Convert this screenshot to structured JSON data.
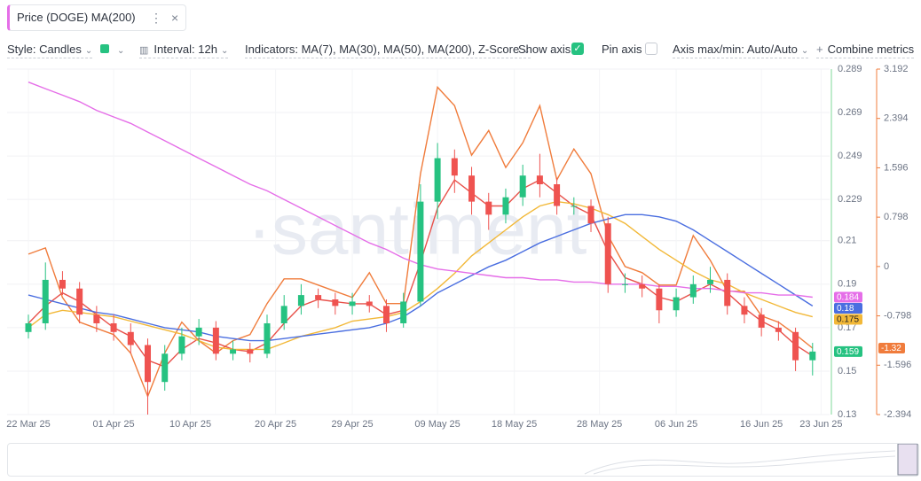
{
  "tab": {
    "title": "Price (DOGE) MA(200)"
  },
  "toolbar": {
    "style": "Style: Candles",
    "interval": "Interval: 12h",
    "indicators": "Indicators: MA(7), MA(30), MA(50), MA(200), Z-Score",
    "show_axis": "Show axis",
    "pin_axis": "Pin axis",
    "axis_maxmin": "Axis max/min: Auto/Auto",
    "combine": "Combine metrics"
  },
  "watermark": "·santiment",
  "chart_data": {
    "type": "candlestick",
    "x": [
      0,
      2,
      4,
      6,
      8,
      10,
      12,
      14,
      16,
      18,
      20,
      22,
      24,
      26,
      28,
      30,
      32,
      34,
      36,
      38,
      40,
      42,
      44,
      46,
      48,
      50,
      52,
      54,
      56,
      58,
      60,
      62,
      64,
      66,
      68,
      70,
      72,
      74,
      76,
      78,
      80,
      82,
      84,
      86,
      88,
      90,
      92
    ],
    "xlim": [
      -2.5,
      94
    ],
    "xticks": [
      {
        "value": 0,
        "label": "22 Mar 25"
      },
      {
        "value": 10,
        "label": "01 Apr 25"
      },
      {
        "value": 19,
        "label": "10 Apr 25"
      },
      {
        "value": 29,
        "label": "20 Apr 25"
      },
      {
        "value": 38,
        "label": "29 Apr 25"
      },
      {
        "value": 48,
        "label": "09 May 25"
      },
      {
        "value": 57,
        "label": "18 May 25"
      },
      {
        "value": 67,
        "label": "28 May 25"
      },
      {
        "value": 76,
        "label": "06 Jun 25"
      },
      {
        "value": 86,
        "label": "16 Jun 25"
      },
      {
        "value": 93,
        "label": "23 Jun 25"
      }
    ],
    "ylim": [
      0.13,
      0.289
    ],
    "yticks": [
      0.13,
      0.15,
      0.17,
      0.19,
      0.21,
      0.229,
      0.249,
      0.269,
      0.289
    ],
    "y2lim": [
      -2.394,
      3.192
    ],
    "y2ticks": [
      -2.394,
      -1.596,
      -0.798,
      0,
      0.798,
      1.596,
      2.394,
      3.192
    ],
    "grid": true,
    "candles": {
      "up_color": "#26c281",
      "down_color": "#ef5350",
      "axis_color": "#7fd99a",
      "last_label": "0.159",
      "open": [
        0.168,
        0.172,
        0.192,
        0.188,
        0.176,
        0.172,
        0.168,
        0.162,
        0.145,
        0.158,
        0.166,
        0.17,
        0.158,
        0.16,
        0.158,
        0.172,
        0.18,
        0.185,
        0.183,
        0.18,
        0.182,
        0.18,
        0.172,
        0.182,
        0.228,
        0.248,
        0.24,
        0.228,
        0.222,
        0.23,
        0.24,
        0.236,
        0.226,
        0.226,
        0.218,
        0.19,
        0.19,
        0.188,
        0.178,
        0.184,
        0.19,
        0.192,
        0.18,
        0.176,
        0.17,
        0.168,
        0.155
      ],
      "high": [
        0.176,
        0.2,
        0.196,
        0.191,
        0.18,
        0.176,
        0.172,
        0.165,
        0.162,
        0.17,
        0.174,
        0.173,
        0.164,
        0.163,
        0.176,
        0.185,
        0.19,
        0.188,
        0.186,
        0.186,
        0.185,
        0.183,
        0.186,
        0.236,
        0.255,
        0.252,
        0.244,
        0.232,
        0.234,
        0.245,
        0.25,
        0.239,
        0.23,
        0.229,
        0.221,
        0.195,
        0.194,
        0.19,
        0.188,
        0.194,
        0.198,
        0.195,
        0.184,
        0.179,
        0.173,
        0.17,
        0.163
      ],
      "low": [
        0.165,
        0.169,
        0.185,
        0.172,
        0.168,
        0.164,
        0.158,
        0.13,
        0.141,
        0.155,
        0.162,
        0.155,
        0.155,
        0.154,
        0.156,
        0.169,
        0.176,
        0.179,
        0.176,
        0.176,
        0.177,
        0.168,
        0.17,
        0.18,
        0.22,
        0.232,
        0.222,
        0.215,
        0.218,
        0.226,
        0.23,
        0.222,
        0.222,
        0.214,
        0.186,
        0.186,
        0.184,
        0.172,
        0.175,
        0.181,
        0.186,
        0.176,
        0.172,
        0.166,
        0.164,
        0.15,
        0.148
      ],
      "close": [
        0.172,
        0.192,
        0.188,
        0.176,
        0.172,
        0.168,
        0.162,
        0.145,
        0.158,
        0.166,
        0.17,
        0.158,
        0.16,
        0.158,
        0.172,
        0.18,
        0.185,
        0.183,
        0.18,
        0.182,
        0.18,
        0.172,
        0.182,
        0.228,
        0.248,
        0.24,
        0.228,
        0.222,
        0.23,
        0.24,
        0.236,
        0.226,
        0.226,
        0.218,
        0.19,
        0.19,
        0.188,
        0.178,
        0.184,
        0.19,
        0.192,
        0.18,
        0.176,
        0.17,
        0.168,
        0.155,
        0.159
      ]
    },
    "series": [
      {
        "name": "MA(200)",
        "color": "#e56ee8",
        "last_label": "0.184",
        "values": [
          0.283,
          0.28,
          0.277,
          0.274,
          0.27,
          0.267,
          0.264,
          0.26,
          0.256,
          0.252,
          0.248,
          0.244,
          0.24,
          0.236,
          0.233,
          0.229,
          0.225,
          0.221,
          0.217,
          0.213,
          0.209,
          0.206,
          0.202,
          0.199,
          0.197,
          0.196,
          0.195,
          0.194,
          0.193,
          0.193,
          0.192,
          0.192,
          0.191,
          0.191,
          0.19,
          0.19,
          0.19,
          0.189,
          0.189,
          0.188,
          0.188,
          0.187,
          0.186,
          0.186,
          0.185,
          0.185,
          0.184
        ]
      },
      {
        "name": "MA(50)",
        "color": "#4a6ee0",
        "last_label": "0.18",
        "values": [
          0.185,
          0.183,
          0.181,
          0.179,
          0.177,
          0.176,
          0.174,
          0.172,
          0.17,
          0.169,
          0.168,
          0.166,
          0.165,
          0.164,
          0.164,
          0.165,
          0.166,
          0.167,
          0.168,
          0.169,
          0.17,
          0.172,
          0.175,
          0.18,
          0.186,
          0.19,
          0.194,
          0.198,
          0.201,
          0.205,
          0.209,
          0.212,
          0.215,
          0.218,
          0.22,
          0.222,
          0.222,
          0.221,
          0.219,
          0.215,
          0.21,
          0.205,
          0.2,
          0.195,
          0.19,
          0.185,
          0.18
        ]
      },
      {
        "name": "MA(30)",
        "color": "#f2b838",
        "last_label": "0.175",
        "values": [
          0.17,
          0.176,
          0.178,
          0.177,
          0.176,
          0.175,
          0.173,
          0.171,
          0.169,
          0.167,
          0.164,
          0.161,
          0.16,
          0.16,
          0.16,
          0.163,
          0.166,
          0.168,
          0.17,
          0.173,
          0.174,
          0.175,
          0.177,
          0.182,
          0.188,
          0.195,
          0.203,
          0.209,
          0.215,
          0.221,
          0.226,
          0.228,
          0.227,
          0.225,
          0.222,
          0.218,
          0.212,
          0.206,
          0.201,
          0.196,
          0.192,
          0.19,
          0.186,
          0.183,
          0.18,
          0.177,
          0.175
        ]
      },
      {
        "name": "MA(7)",
        "color": "#e8514a",
        "values": [
          0.172,
          0.18,
          0.186,
          0.182,
          0.176,
          0.17,
          0.166,
          0.155,
          0.152,
          0.16,
          0.165,
          0.163,
          0.16,
          0.159,
          0.163,
          0.172,
          0.18,
          0.183,
          0.182,
          0.181,
          0.181,
          0.176,
          0.178,
          0.2,
          0.225,
          0.238,
          0.232,
          0.226,
          0.226,
          0.234,
          0.238,
          0.232,
          0.226,
          0.222,
          0.205,
          0.193,
          0.19,
          0.184,
          0.182,
          0.186,
          0.19,
          0.186,
          0.179,
          0.173,
          0.169,
          0.162,
          0.157
        ]
      },
      {
        "name": "Z-Score",
        "color": "#f07c3c",
        "axis": "y2",
        "last_label": "-1.32",
        "values": [
          0.2,
          0.3,
          -0.5,
          -0.9,
          -1.0,
          -1.1,
          -1.4,
          -2.1,
          -1.4,
          -0.9,
          -1.2,
          -1.4,
          -1.2,
          -1.1,
          -0.6,
          -0.2,
          -0.2,
          -0.3,
          -0.4,
          -0.5,
          -0.1,
          -0.6,
          -0.6,
          1.5,
          2.9,
          2.6,
          1.8,
          2.2,
          1.6,
          2.0,
          2.6,
          1.4,
          1.9,
          1.5,
          0.5,
          0.0,
          -0.1,
          -0.3,
          -0.3,
          0.5,
          0.1,
          -0.4,
          -0.4,
          -0.8,
          -0.9,
          -1.1,
          -1.32
        ]
      }
    ]
  }
}
